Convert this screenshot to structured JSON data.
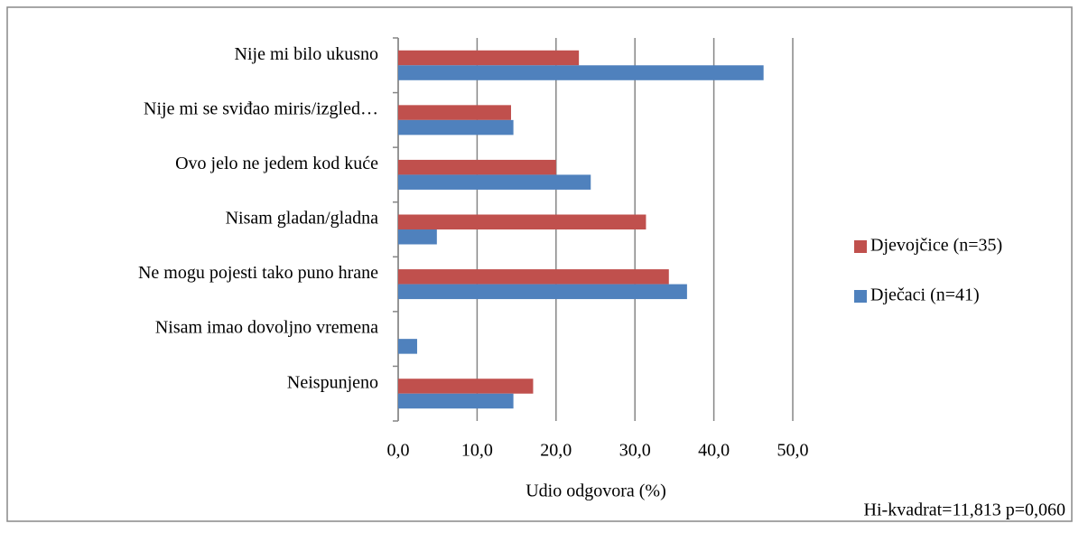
{
  "chart_data": {
    "type": "barh",
    "categories": [
      "Nije mi bilo ukusno",
      "Nije mi se sviđao miris/izgled…",
      "Ovo jelo ne jedem kod kuće",
      "Nisam gladan/gladna",
      "Ne mogu pojesti tako puno hrane",
      "Nisam imao dovoljno vremena",
      "Neispunjeno"
    ],
    "series": [
      {
        "name": "Djevojčice (n=35)",
        "color": "#c0504d",
        "values": [
          22.9,
          14.3,
          20.0,
          31.4,
          34.3,
          0,
          17.1
        ]
      },
      {
        "name": "Dječaci (n=41)",
        "color": "#4f81bd",
        "values": [
          46.3,
          14.6,
          24.4,
          4.9,
          36.6,
          2.4,
          14.6
        ]
      }
    ],
    "xlim": [
      0,
      50
    ],
    "xticks": [
      {
        "value": 0,
        "label": "0,0"
      },
      {
        "value": 10,
        "label": "10,0"
      },
      {
        "value": 20,
        "label": "20,0"
      },
      {
        "value": 30,
        "label": "30,0"
      },
      {
        "value": 40,
        "label": "40,0"
      },
      {
        "value": 50,
        "label": "50,0"
      }
    ],
    "xlabel": "Udio odgovora (%)",
    "annotation": "Hi-kvadrat=11,813  p=0,060",
    "grid": true,
    "legend": "right"
  }
}
